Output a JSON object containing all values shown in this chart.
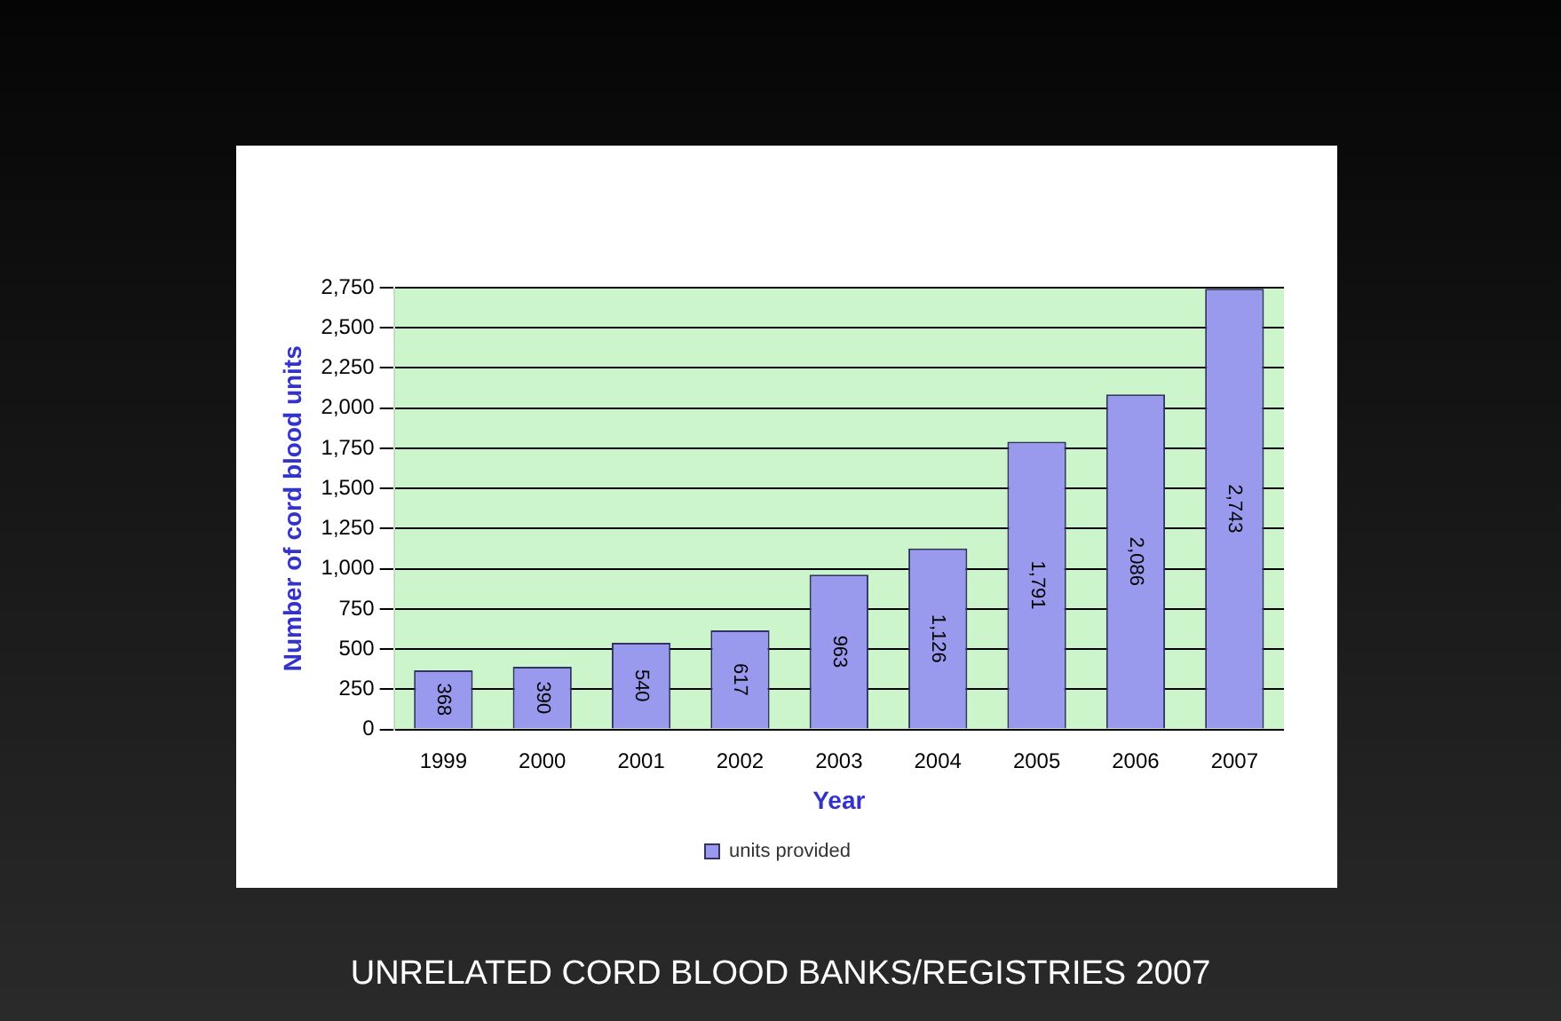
{
  "chart_data": {
    "type": "bar",
    "title": "UNRELATED CORD BLOOD BANKS/REGISTRIES 2007",
    "xlabel": "Year",
    "ylabel": "Number of cord blood units",
    "categories": [
      "1999",
      "2000",
      "2001",
      "2002",
      "2003",
      "2004",
      "2005",
      "2006",
      "2007"
    ],
    "series": [
      {
        "name": "units provided",
        "color": "#9999ee",
        "values": [
          368,
          390,
          540,
          617,
          963,
          1126,
          1791,
          2086,
          2743
        ],
        "value_labels": [
          "368",
          "390",
          "540",
          "617",
          "963",
          "1,126",
          "1,791",
          "2,086",
          "2,743"
        ]
      }
    ],
    "ylim": [
      0,
      2750
    ],
    "yticks": [
      0,
      250,
      500,
      750,
      {
        "value": 1000,
        "label": "1,000"
      },
      {
        "value": 1250,
        "label": "1,250"
      },
      {
        "value": 1500,
        "label": "1,500"
      },
      {
        "value": 1750,
        "label": "1,750"
      },
      {
        "value": 2000,
        "label": "2,000"
      },
      {
        "value": 2250,
        "label": "2,250"
      },
      {
        "value": 2500,
        "label": "2,500"
      },
      {
        "value": 2750,
        "label": "2,750"
      }
    ],
    "grid": "y",
    "legend": "bottom"
  }
}
